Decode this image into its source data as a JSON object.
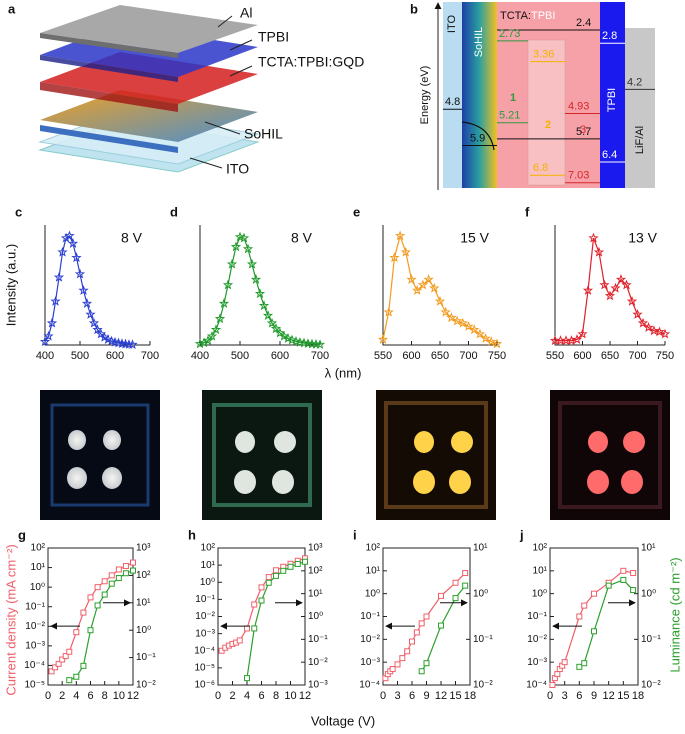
{
  "panel_labels": [
    "a",
    "b"
  ],
  "device": {
    "layers": [
      "Al",
      "TPBI",
      "TCTA:TPBI:GQD",
      "SoHIL",
      "ITO"
    ]
  },
  "energy_diagram": {
    "y_label": "Energy (eV)",
    "materials": [
      "ITO",
      "SoHIL",
      "TPBI",
      "LiF/Al"
    ],
    "host": [
      "TCTA:",
      "TPBI"
    ],
    "regions": [
      "1",
      "2",
      "3"
    ],
    "levels": [
      {
        "value": 2.4,
        "color": "#111111"
      },
      {
        "value": 2.8,
        "color": "#ffffff"
      },
      {
        "value": 4.2,
        "color": "#333333"
      },
      {
        "value": 4.8,
        "color": "#111111"
      },
      {
        "value": 2.73,
        "color": "#2e9a3e"
      },
      {
        "value": 3.36,
        "color": "#f2b200"
      },
      {
        "value": 5.21,
        "color": "#2e9a3e"
      },
      {
        "value": 4.93,
        "color": "#d62728"
      },
      {
        "value": 5.7,
        "color": "#111111"
      },
      {
        "value": 5.9,
        "color": "#111111"
      },
      {
        "value": 6.4,
        "color": "#ffffff"
      },
      {
        "value": 7.03,
        "color": "#d62728"
      },
      {
        "value": 6.8,
        "color": "#f2b200"
      }
    ]
  },
  "axis_titles": {
    "intensity": "Intensity (a.u.)",
    "wavelength": "λ (nm)",
    "current": "Current density (mA cm⁻²)",
    "luminance": "Luminance (cd m⁻²)",
    "voltage": "Voltage (V)"
  },
  "chart_data": [
    {
      "type": "line",
      "label": "c",
      "annotation": "8 V",
      "xlim": [
        400,
        700
      ],
      "xticks": [
        400,
        500,
        600,
        700
      ],
      "ylim": [
        0,
        1.1
      ],
      "x": [
        400,
        410,
        420,
        430,
        440,
        450,
        460,
        470,
        480,
        490,
        500,
        510,
        520,
        530,
        540,
        550,
        560,
        570,
        580,
        590,
        600,
        610,
        620,
        630,
        640,
        650
      ],
      "series": [
        {
          "color": "#2b3fd0",
          "marker": "star",
          "values": [
            0.03,
            0.08,
            0.2,
            0.4,
            0.62,
            0.85,
            0.98,
            1.0,
            0.93,
            0.8,
            0.65,
            0.5,
            0.38,
            0.28,
            0.2,
            0.14,
            0.1,
            0.07,
            0.05,
            0.035,
            0.025,
            0.018,
            0.012,
            0.008,
            0.005,
            0.003
          ]
        }
      ]
    },
    {
      "type": "line",
      "label": "d",
      "annotation": "8 V",
      "xlim": [
        400,
        700
      ],
      "xticks": [
        400,
        500,
        600,
        700
      ],
      "ylim": [
        0,
        1.1
      ],
      "x": [
        400,
        410,
        420,
        430,
        440,
        450,
        460,
        470,
        480,
        490,
        500,
        510,
        520,
        530,
        540,
        550,
        560,
        570,
        580,
        590,
        600,
        610,
        620,
        630,
        640,
        650,
        660,
        670,
        680,
        690,
        700
      ],
      "series": [
        {
          "color": "#1f9a2a",
          "marker": "star",
          "values": [
            0.01,
            0.02,
            0.04,
            0.08,
            0.14,
            0.24,
            0.38,
            0.55,
            0.74,
            0.9,
            0.99,
            0.98,
            0.88,
            0.74,
            0.6,
            0.47,
            0.36,
            0.27,
            0.2,
            0.15,
            0.11,
            0.08,
            0.06,
            0.045,
            0.033,
            0.024,
            0.018,
            0.013,
            0.009,
            0.006,
            0.004
          ]
        }
      ]
    },
    {
      "type": "line",
      "label": "e",
      "annotation": "15 V",
      "xlim": [
        550,
        750
      ],
      "xticks": [
        550,
        600,
        650,
        700,
        750
      ],
      "ylim": [
        0,
        1.1
      ],
      "x": [
        550,
        560,
        570,
        580,
        590,
        600,
        610,
        620,
        630,
        640,
        650,
        660,
        670,
        680,
        690,
        700,
        710,
        720,
        730,
        740,
        750
      ],
      "series": [
        {
          "color": "#f39a1e",
          "marker": "star",
          "values": [
            0.05,
            0.3,
            0.8,
            1.0,
            0.85,
            0.6,
            0.5,
            0.55,
            0.6,
            0.52,
            0.4,
            0.3,
            0.25,
            0.22,
            0.2,
            0.17,
            0.14,
            0.1,
            0.06,
            0.03,
            0.01
          ]
        }
      ]
    },
    {
      "type": "line",
      "label": "f",
      "annotation": "13 V",
      "xlim": [
        550,
        750
      ],
      "xticks": [
        550,
        600,
        650,
        700,
        750
      ],
      "ylim": [
        0,
        1.1
      ],
      "x": [
        550,
        560,
        570,
        580,
        590,
        600,
        610,
        620,
        630,
        640,
        650,
        660,
        670,
        680,
        690,
        700,
        710,
        720,
        730,
        740,
        750
      ],
      "series": [
        {
          "color": "#e0202a",
          "marker": "star",
          "values": [
            0.04,
            0.04,
            0.04,
            0.04,
            0.05,
            0.1,
            0.5,
            0.98,
            0.85,
            0.55,
            0.45,
            0.52,
            0.6,
            0.55,
            0.4,
            0.28,
            0.2,
            0.16,
            0.13,
            0.12,
            0.1
          ]
        }
      ]
    },
    {
      "type": "line",
      "label": "g",
      "log_y": true,
      "xlim": [
        0,
        12
      ],
      "xticks": [
        0,
        2,
        4,
        6,
        8,
        10,
        12
      ],
      "ylim": [
        1e-05,
        100
      ],
      "yticks": [
        {
          "value": 1e-05,
          "label": "10⁻⁵"
        },
        {
          "value": 0.0001,
          "label": "10⁻⁴"
        },
        {
          "value": 0.001,
          "label": "10⁻³"
        },
        {
          "value": 0.01,
          "label": "10⁻²"
        },
        {
          "value": 0.1,
          "label": "10⁻¹"
        },
        {
          "value": 1,
          "label": "10⁰"
        },
        {
          "value": 10,
          "label": "10¹"
        },
        {
          "value": 100,
          "label": "10²"
        }
      ],
      "y2lim": [
        0.01,
        1000
      ],
      "y2ticks": [
        {
          "value": 0.01,
          "label": "10⁻²"
        },
        {
          "value": 0.1,
          "label": "10⁻¹"
        },
        {
          "value": 1,
          "label": "10⁰"
        },
        {
          "value": 10,
          "label": "10¹"
        },
        {
          "value": 100,
          "label": "10²"
        },
        {
          "value": 1000,
          "label": "10³"
        }
      ],
      "x": [
        0.5,
        1,
        1.5,
        2,
        2.5,
        3,
        4,
        5,
        6,
        7,
        8,
        9,
        10,
        11,
        12
      ],
      "series": [
        {
          "color": "#f0606a",
          "marker": "square",
          "values": [
            5e-05,
            8e-05,
            0.00012,
            0.0002,
            0.0003,
            0.0005,
            0.005,
            0.05,
            0.3,
            1,
            2,
            4,
            8,
            12,
            18
          ]
        },
        {
          "color": "#2ca02c",
          "marker": "square",
          "axis": "y2",
          "values": [
            null,
            null,
            null,
            null,
            null,
            0.015,
            0.02,
            0.05,
            1,
            8,
            20,
            50,
            80,
            120,
            150
          ]
        }
      ]
    },
    {
      "type": "line",
      "label": "h",
      "log_y": true,
      "xlim": [
        0,
        12
      ],
      "xticks": [
        0,
        2,
        4,
        6,
        8,
        10,
        12
      ],
      "ylim": [
        1e-06,
        100
      ],
      "yticks": [
        {
          "value": 1e-06,
          "label": "10⁻⁶"
        },
        {
          "value": 1e-05,
          "label": "10⁻⁵"
        },
        {
          "value": 0.0001,
          "label": "10⁻⁴"
        },
        {
          "value": 0.001,
          "label": "10⁻³"
        },
        {
          "value": 0.01,
          "label": "10⁻²"
        },
        {
          "value": 0.1,
          "label": "10⁻¹"
        },
        {
          "value": 1,
          "label": "10⁰"
        },
        {
          "value": 10,
          "label": "10¹"
        },
        {
          "value": 100,
          "label": "10²"
        }
      ],
      "y2lim": [
        0.001,
        1000
      ],
      "y2ticks": [
        {
          "value": 0.001,
          "label": "10⁻³"
        },
        {
          "value": 0.01,
          "label": "10⁻²"
        },
        {
          "value": 0.1,
          "label": "10⁻¹"
        },
        {
          "value": 1,
          "label": "10⁰"
        },
        {
          "value": 10,
          "label": "10¹"
        },
        {
          "value": 100,
          "label": "10²"
        },
        {
          "value": 1000,
          "label": "10³"
        }
      ],
      "x": [
        0.5,
        1,
        1.5,
        2,
        2.5,
        3,
        4,
        5,
        6,
        7,
        8,
        9,
        10,
        11,
        12
      ],
      "series": [
        {
          "color": "#f0606a",
          "marker": "square",
          "values": [
            0.0001,
            0.00015,
            0.0002,
            0.00025,
            0.0003,
            0.0004,
            0.002,
            0.05,
            0.5,
            2,
            5,
            8,
            12,
            18,
            25
          ]
        },
        {
          "color": "#2ca02c",
          "marker": "square",
          "axis": "y2",
          "values": [
            null,
            null,
            null,
            null,
            null,
            null,
            0.002,
            0.3,
            5,
            30,
            60,
            100,
            150,
            200,
            250
          ]
        }
      ]
    },
    {
      "type": "line",
      "label": "i",
      "log_y": true,
      "xlim": [
        0,
        18
      ],
      "xticks": [
        0,
        3,
        6,
        9,
        12,
        15,
        18
      ],
      "ylim": [
        0.0001,
        100
      ],
      "yticks": [
        {
          "value": 0.0001,
          "label": "10⁻⁴"
        },
        {
          "value": 0.001,
          "label": "10⁻³"
        },
        {
          "value": 0.01,
          "label": "10⁻²"
        },
        {
          "value": 0.1,
          "label": "10⁻¹"
        },
        {
          "value": 1,
          "label": "10⁰"
        },
        {
          "value": 10,
          "label": "10¹"
        },
        {
          "value": 100,
          "label": "10²"
        }
      ],
      "y2lim": [
        0.01,
        10
      ],
      "y2ticks": [
        {
          "value": 0.01,
          "label": "10⁻²"
        },
        {
          "value": 0.1,
          "label": "10⁻¹"
        },
        {
          "value": 1,
          "label": "10⁰"
        },
        {
          "value": 10,
          "label": "10¹"
        }
      ],
      "x": [
        0.5,
        1,
        1.5,
        2,
        3,
        4,
        5,
        6,
        7,
        8,
        9,
        12,
        15,
        17
      ],
      "series": [
        {
          "color": "#f0606a",
          "marker": "square",
          "values": [
            0.0002,
            0.0003,
            0.0004,
            0.0005,
            0.0008,
            0.0015,
            0.003,
            0.008,
            0.02,
            0.05,
            0.1,
            0.8,
            3,
            8
          ]
        },
        {
          "color": "#2ca02c",
          "marker": "square",
          "axis": "y2",
          "values": [
            null,
            null,
            null,
            null,
            null,
            null,
            null,
            null,
            null,
            0.02,
            0.03,
            0.2,
            0.8,
            1.5
          ]
        }
      ]
    },
    {
      "type": "line",
      "label": "j",
      "log_y": true,
      "xlim": [
        0,
        18
      ],
      "xticks": [
        0,
        3,
        6,
        9,
        12,
        15,
        18
      ],
      "ylim": [
        0.0001,
        100
      ],
      "yticks": [
        {
          "value": 0.0001,
          "label": "10⁻⁴"
        },
        {
          "value": 0.001,
          "label": "10⁻³"
        },
        {
          "value": 0.01,
          "label": "10⁻²"
        },
        {
          "value": 0.1,
          "label": "10⁻¹"
        },
        {
          "value": 1,
          "label": "10⁰"
        },
        {
          "value": 10,
          "label": "10¹"
        },
        {
          "value": 100,
          "label": "10²"
        }
      ],
      "y2lim": [
        0.01,
        10
      ],
      "y2ticks": [
        {
          "value": 0.01,
          "label": "10⁻²"
        },
        {
          "value": 0.1,
          "label": "10⁻¹"
        },
        {
          "value": 1,
          "label": "10⁰"
        },
        {
          "value": 10,
          "label": "10¹"
        }
      ],
      "x": [
        0.5,
        1,
        1.5,
        2,
        2.5,
        3,
        6,
        7,
        9,
        12,
        15,
        17
      ],
      "series": [
        {
          "color": "#f0606a",
          "marker": "square",
          "values": [
            0.0001,
            0.0002,
            0.0003,
            0.0005,
            0.0007,
            0.001,
            0.1,
            0.3,
            1,
            3,
            10,
            8
          ]
        },
        {
          "color": "#2ca02c",
          "marker": "square",
          "axis": "y2",
          "values": [
            null,
            null,
            null,
            null,
            null,
            null,
            0.025,
            0.03,
            0.15,
            1.5,
            2,
            1.2
          ]
        }
      ]
    }
  ]
}
